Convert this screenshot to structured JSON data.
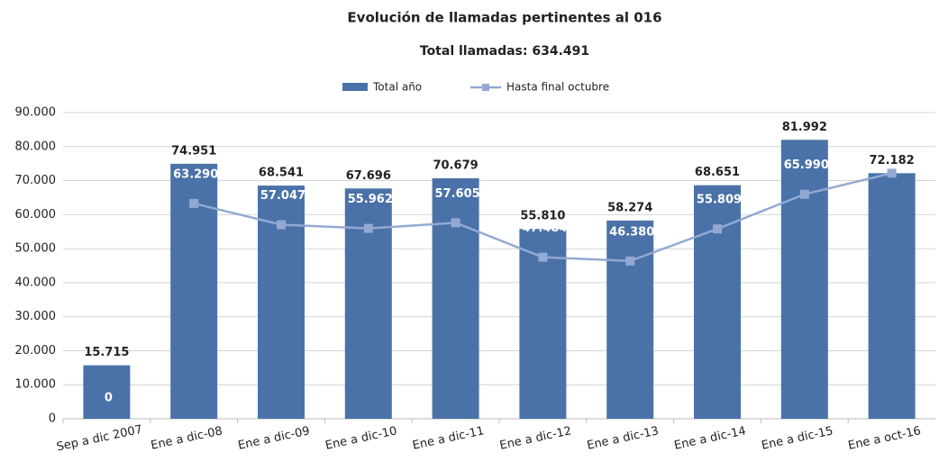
{
  "chart_data": {
    "type": "bar_line",
    "title": "Evolución de llamadas pertinentes al 016",
    "subtitle": "Total llamadas: 634.491",
    "categories": [
      "Sep a dic 2007",
      "Ene a dic-08",
      "Ene a dic-09",
      "Ene a dic-10",
      "Ene a dic-11",
      "Ene a dic-12",
      "Ene a dic-13",
      "Ene a dic-14",
      "Ene a dic-15",
      "Ene a oct-16"
    ],
    "series": [
      {
        "name": "Total año",
        "type": "bar",
        "color": "#4a72a8",
        "values": [
          15715,
          74951,
          68541,
          67696,
          70679,
          55810,
          58274,
          68651,
          81992,
          72182
        ],
        "value_labels": [
          "15.715",
          "74.951",
          "68.541",
          "67.696",
          "70.679",
          "55.810",
          "58.274",
          "68.651",
          "81.992",
          "72.182"
        ]
      },
      {
        "name": "Hasta final octubre",
        "type": "line",
        "color": "#93a9d2",
        "values": [
          0,
          63290,
          57047,
          55962,
          57605,
          47484,
          46380,
          55809,
          65990,
          72182
        ],
        "value_labels": [
          "0",
          "63.290",
          "57.047",
          "55.962",
          "57.605",
          "47.484",
          "46.380",
          "55.809",
          "65.990",
          null
        ]
      }
    ],
    "ylim": [
      0,
      90000
    ],
    "yticks": [
      0,
      {
        "value": 10000,
        "label": "10.000"
      },
      {
        "value": 20000,
        "label": "20.000"
      },
      {
        "value": 30000,
        "label": "30.000"
      },
      {
        "value": 40000,
        "label": "40.000"
      },
      {
        "value": 50000,
        "label": "50.000"
      },
      {
        "value": 60000,
        "label": "60.000"
      },
      {
        "value": 70000,
        "label": "70.000"
      },
      {
        "value": 80000,
        "label": "80.000"
      },
      {
        "value": 90000,
        "label": "90.000"
      }
    ],
    "grid": true,
    "legend": "top"
  }
}
